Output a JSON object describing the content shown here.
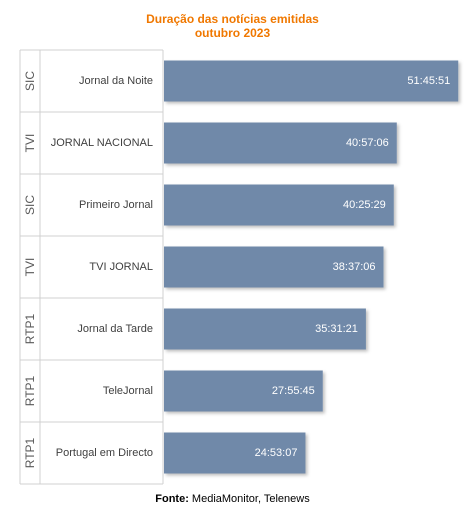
{
  "chart_data": {
    "type": "bar",
    "orientation": "horizontal",
    "title": "Duração das notícias emitidas",
    "subtitle": "outubro 2023",
    "categories": [
      "Jornal da Noite",
      "JORNAL NACIONAL",
      "Primeiro Jornal",
      "TVI JORNAL",
      "Jornal da Tarde",
      "TeleJornal",
      "Portugal em Directo"
    ],
    "channels": [
      "SIC",
      "TVI",
      "SIC",
      "TVI",
      "RTP1",
      "RTP1",
      "RTP1"
    ],
    "values_seconds": [
      186351,
      147426,
      145529,
      139026,
      127881,
      100545,
      89587
    ],
    "value_labels": [
      "51:45:51",
      "40:57:06",
      "40:25:29",
      "38:37:06",
      "35:31:21",
      "27:55:45",
      "24:53:07"
    ],
    "xlim": [
      0,
      190000
    ],
    "bar_color": "#7089A9",
    "title_color": "#F07800"
  },
  "source": {
    "label": "Fonte:",
    "text": "MediaMonitor, Telenews"
  }
}
